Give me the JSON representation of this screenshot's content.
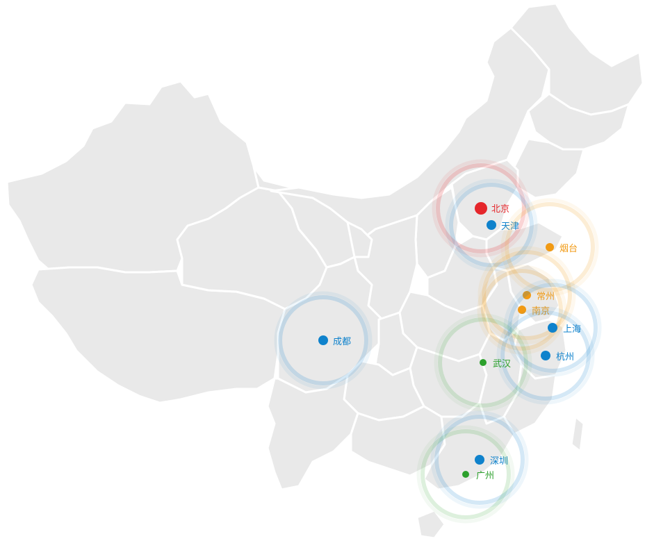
{
  "map": {
    "land_color": "#e9e9e9",
    "border_color": "#ffffff",
    "cities": [
      {
        "id": "beijing",
        "name": "北京",
        "color": "#e5262b",
        "size": "large"
      },
      {
        "id": "tianjin",
        "name": "天津",
        "color": "#0f82cc",
        "size": "medium"
      },
      {
        "id": "yantai",
        "name": "烟台",
        "color": "#f19a14",
        "size": "small"
      },
      {
        "id": "changzhou",
        "name": "常州",
        "color": "#f19a14",
        "size": "small"
      },
      {
        "id": "nanjing",
        "name": "南京",
        "color": "#f19a14",
        "size": "small"
      },
      {
        "id": "shanghai",
        "name": "上海",
        "color": "#0f82cc",
        "size": "medium"
      },
      {
        "id": "hangzhou",
        "name": "杭州",
        "color": "#0f82cc",
        "size": "medium"
      },
      {
        "id": "wuhan",
        "name": "武汉",
        "color": "#2ca02c",
        "size": "tiny"
      },
      {
        "id": "chengdu",
        "name": "成都",
        "color": "#0f82cc",
        "size": "medium"
      },
      {
        "id": "shenzhen",
        "name": "深圳",
        "color": "#0f82cc",
        "size": "medium"
      },
      {
        "id": "guangzhou",
        "name": "广州",
        "color": "#2ca02c",
        "size": "tiny"
      }
    ]
  }
}
